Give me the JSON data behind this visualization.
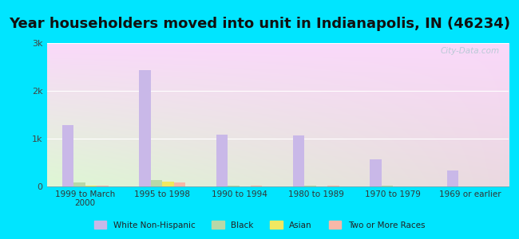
{
  "title": "Year householders moved into unit in Indianapolis, IN (46234)",
  "categories": [
    "1999 to March\n2000",
    "1995 to 1998",
    "1990 to 1994",
    "1980 to 1989",
    "1970 to 1979",
    "1969 or earlier"
  ],
  "series": {
    "White Non-Hispanic": [
      1280,
      2430,
      1090,
      1060,
      570,
      340
    ],
    "Black": [
      90,
      130,
      15,
      15,
      10,
      8
    ],
    "Asian": [
      10,
      100,
      5,
      5,
      5,
      5
    ],
    "Two or More Races": [
      15,
      80,
      10,
      10,
      5,
      5
    ]
  },
  "colors": {
    "White Non-Hispanic": "#c9b8e8",
    "Black": "#b8d8a8",
    "Asian": "#f0e860",
    "Two or More Races": "#f8b8a8"
  },
  "ylim": [
    0,
    3000
  ],
  "yticks": [
    0,
    1000,
    2000,
    3000
  ],
  "ytick_labels": [
    "0",
    "1k",
    "2k",
    "3k"
  ],
  "background_outer": "#00e5ff",
  "title_fontsize": 13,
  "bar_width": 0.15,
  "watermark": "City-Data.com"
}
